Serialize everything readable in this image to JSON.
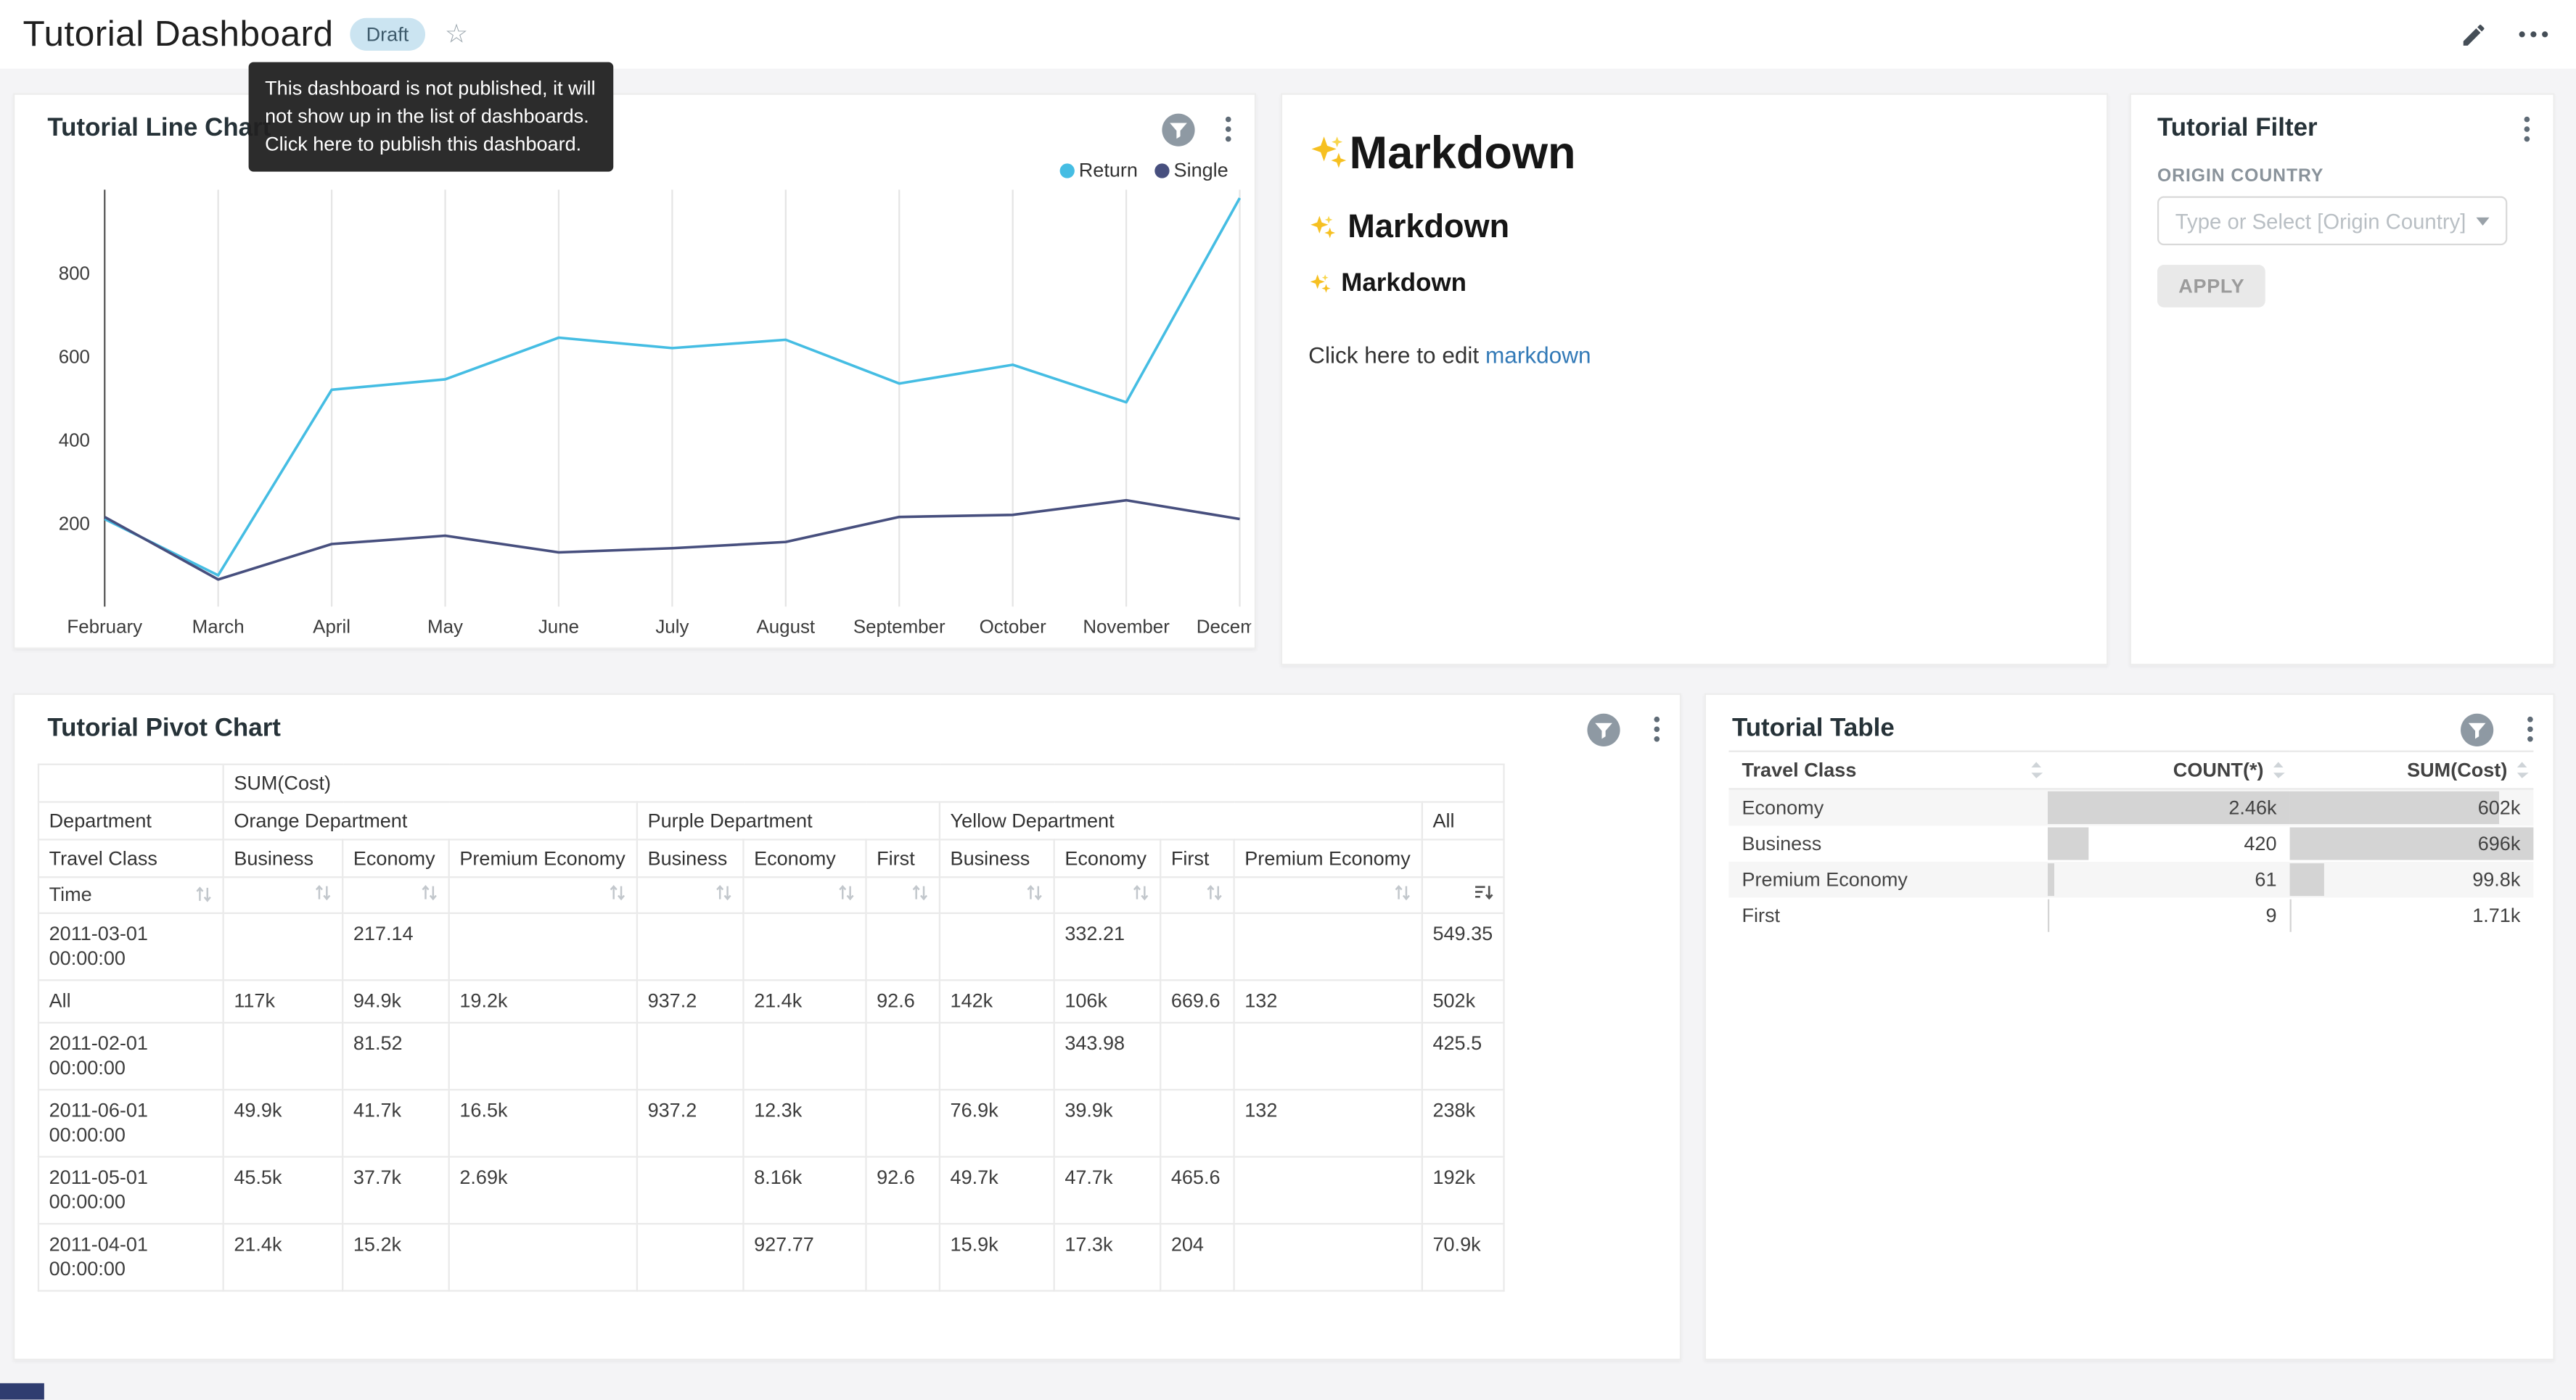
{
  "header": {
    "title": "Tutorial Dashboard",
    "badge": "Draft",
    "tooltip": "This dashboard is not published, it will not show up in the list of dashboards. Click here to publish this dashboard."
  },
  "colors": {
    "link": "#337ab7",
    "badge_bg": "#cbe4f1",
    "bar": "#d4d4d4",
    "return_series": "#45bde3",
    "single_series": "#474f7e"
  },
  "line_chart_card": {
    "title": "Tutorial Line Chart"
  },
  "chart_data": {
    "type": "line",
    "title": "Tutorial Line Chart",
    "x": [
      "February",
      "March",
      "April",
      "May",
      "June",
      "July",
      "August",
      "September",
      "October",
      "November",
      "December"
    ],
    "series": [
      {
        "name": "Return",
        "color": "#45bde3",
        "values": [
          210,
          75,
          520,
          545,
          645,
          620,
          640,
          535,
          580,
          490,
          980
        ]
      },
      {
        "name": "Single",
        "color": "#474f7e",
        "values": [
          215,
          65,
          150,
          170,
          130,
          140,
          155,
          215,
          220,
          255,
          210
        ]
      }
    ],
    "ylim": [
      0,
      1000
    ],
    "yticks": [
      200,
      400,
      600,
      800
    ],
    "grid": "vertical",
    "legend_position": "top-right"
  },
  "markdown_card": {
    "heading1": "Markdown",
    "heading2": "Markdown",
    "heading3": "Markdown",
    "edit_prefix": "Click here to edit ",
    "edit_link": "markdown"
  },
  "filter_card": {
    "title": "Tutorial Filter",
    "field_label": "ORIGIN COUNTRY",
    "select_placeholder": "Type or Select [Origin Country]",
    "apply_label": "APPLY"
  },
  "pivot_card": {
    "title": "Tutorial Pivot Chart",
    "metric_header": "SUM(Cost)",
    "dept_label": "Department",
    "class_label": "Travel Class",
    "time_label": "Time",
    "sorted_column": "All",
    "sort_direction": "desc",
    "groups": [
      {
        "label": "Orange Department",
        "cols": [
          "Business",
          "Economy",
          "Premium Economy"
        ]
      },
      {
        "label": "Purple Department",
        "cols": [
          "Business",
          "Economy",
          "First"
        ]
      },
      {
        "label": "Yellow Department",
        "cols": [
          "Business",
          "Economy",
          "First",
          "Premium Economy"
        ]
      },
      {
        "label": "All",
        "cols": [
          ""
        ]
      }
    ],
    "rows": [
      {
        "time": "2011-03-01 00:00:00",
        "values": [
          "",
          "217.14",
          "",
          "",
          "",
          "",
          "",
          "332.21",
          "",
          "",
          "549.35"
        ]
      },
      {
        "time": "All",
        "values": [
          "117k",
          "94.9k",
          "19.2k",
          "937.2",
          "21.4k",
          "92.6",
          "142k",
          "106k",
          "669.6",
          "132",
          "502k"
        ]
      },
      {
        "time": "2011-02-01 00:00:00",
        "values": [
          "",
          "81.52",
          "",
          "",
          "",
          "",
          "",
          "343.98",
          "",
          "",
          "425.5"
        ]
      },
      {
        "time": "2011-06-01 00:00:00",
        "values": [
          "49.9k",
          "41.7k",
          "16.5k",
          "937.2",
          "12.3k",
          "",
          "76.9k",
          "39.9k",
          "",
          "132",
          "238k"
        ]
      },
      {
        "time": "2011-05-01 00:00:00",
        "values": [
          "45.5k",
          "37.7k",
          "2.69k",
          "",
          "8.16k",
          "92.6",
          "49.7k",
          "47.7k",
          "465.6",
          "",
          "192k"
        ]
      },
      {
        "time": "2011-04-01 00:00:00",
        "values": [
          "21.4k",
          "15.2k",
          "",
          "",
          "927.77",
          "",
          "15.9k",
          "17.3k",
          "204",
          "",
          "70.9k"
        ]
      }
    ]
  },
  "table_card": {
    "title": "Tutorial Table",
    "columns": [
      "Travel Class",
      "COUNT(*)",
      "SUM(Cost)"
    ],
    "rows": [
      {
        "class": "Economy",
        "count": "2.46k",
        "sum": "602k",
        "count_bar": 100,
        "sum_bar": 86
      },
      {
        "class": "Business",
        "count": "420",
        "sum": "696k",
        "count_bar": 17,
        "sum_bar": 100
      },
      {
        "class": "Premium Economy",
        "count": "61",
        "sum": "99.8k",
        "count_bar": 2.5,
        "sum_bar": 14
      },
      {
        "class": "First",
        "count": "9",
        "sum": "1.71k",
        "count_bar": 0.5,
        "sum_bar": 0.3
      }
    ]
  }
}
